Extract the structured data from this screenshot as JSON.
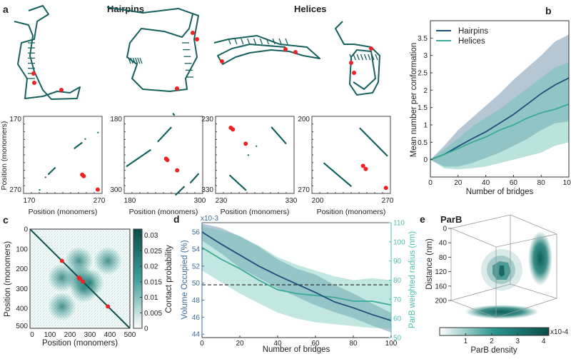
{
  "panels": {
    "a": "a",
    "b": "b",
    "c": "c",
    "d": "d",
    "e": "e"
  },
  "colors": {
    "hairpins": "#1f4f7d",
    "helices": "#3bab99",
    "teal_dark": "#0f5f5c",
    "red": "#ee2222",
    "hairpin_band": "#5c809f",
    "helix_band": "#67c2b2"
  },
  "chart_data": [
    {
      "id": "a-structures",
      "type": "diagram",
      "group_titles": [
        "Hairpins",
        "Helices"
      ]
    },
    {
      "id": "a-contact-maps",
      "type": "scatter",
      "xlabel": "Position (monomers)",
      "ylabel": "Position (monomers)",
      "maps": [
        {
          "range": [
            170,
            270
          ],
          "tick_labels": [
            "170",
            "270"
          ],
          "teal_segments": [
            [
              190.5,
              265.5,
              190.5,
              265.5
            ],
            [
              198,
              249,
              198,
              249
            ],
            [
              201.8,
              245,
              210.9,
              236
            ],
            [
              235,
              211.4,
              244.7,
              204
            ],
            [
              248.6,
              199.4,
              248.6,
              199.4
            ],
            [
              264.8,
              191,
              264.8,
              191
            ]
          ],
          "red_points": [
            [
              244.7,
              245.7
            ],
            [
              246.6,
              247.5
            ],
            [
              264.5,
              265
            ]
          ]
        },
        {
          "range": [
            180,
            300
          ],
          "tick_labels": [
            "180",
            "300"
          ],
          "teal_segments": [
            [
              184,
              257.6,
              220,
              232.5
            ],
            [
              231.8,
              219,
              252,
              197
            ],
            [
              255,
              176,
              256.5,
              178
            ],
            [
              259,
              302,
              271.4,
              289.8
            ],
            [
              281.6,
              283,
              294,
              269
            ]
          ],
          "red_points": [
            [
              244,
              246
            ],
            [
              246,
              248
            ],
            [
              261,
              264
            ]
          ]
        },
        {
          "range": [
            230,
            330
          ],
          "tick_labels": [
            "230",
            "330"
          ],
          "teal_segments": [
            [
              248.4,
              306.8,
              268.4,
              325.5
            ],
            [
              301.6,
              244.5,
              319.4,
              265
            ],
            [
              282,
              268.7,
              282,
              268.7
            ],
            [
              271.6,
              280.3,
              271.6,
              280.3
            ]
          ],
          "red_points": [
            [
              249.4,
              244.8
            ],
            [
              252,
              247
            ],
            [
              268.4,
              265.5
            ]
          ]
        },
        {
          "range": [
            200,
            270
          ],
          "tick_labels": [
            "200",
            "270"
          ],
          "teal_segments": [
            [
              211,
              242.7,
              234.8,
              263.3
            ],
            [
              243,
              211,
              267,
              235.7
            ]
          ],
          "red_points": [
            [
              245.6,
              245
            ],
            [
              248,
              247.8
            ],
            [
              266,
              265
            ]
          ]
        }
      ]
    },
    {
      "id": "b",
      "type": "line",
      "xlabel": "Number of bridges",
      "ylabel": "Mean number per conformation",
      "xlim": [
        0,
        100
      ],
      "ylim": [
        -0.5,
        4.0
      ],
      "xticks": [
        0,
        20,
        40,
        60,
        80,
        100
      ],
      "yticks": [
        0,
        0.5,
        1,
        1.5,
        2,
        2.5,
        3,
        3.5
      ],
      "ytick_labels": [
        "0",
        "0.5",
        "1",
        "1.5",
        "2",
        "2.5",
        "3",
        "3.5"
      ],
      "legend": "top-left",
      "x": [
        0,
        10,
        20,
        30,
        40,
        50,
        60,
        70,
        80,
        90,
        100
      ],
      "series": [
        {
          "name": "Hairpins",
          "values": [
            0,
            0.15,
            0.38,
            0.6,
            0.8,
            1.05,
            1.3,
            1.6,
            1.9,
            2.15,
            2.35
          ],
          "upper": [
            0,
            0.4,
            0.85,
            1.2,
            1.55,
            1.9,
            2.3,
            2.65,
            3.0,
            3.4,
            3.6
          ],
          "lower": [
            0,
            -0.2,
            -0.2,
            -0.1,
            0.05,
            0.2,
            0.4,
            0.6,
            0.85,
            1.05,
            1.1
          ]
        },
        {
          "name": "Helices",
          "values": [
            0,
            0.15,
            0.32,
            0.5,
            0.65,
            0.85,
            1.0,
            1.2,
            1.35,
            1.45,
            1.6
          ],
          "upper": [
            0,
            0.3,
            0.6,
            0.95,
            1.2,
            1.45,
            1.75,
            2.05,
            2.35,
            2.65,
            2.8
          ],
          "lower": [
            0,
            -0.25,
            -0.28,
            -0.25,
            -0.2,
            -0.1,
            0.0,
            0.1,
            0.2,
            0.4,
            0.5
          ]
        }
      ]
    },
    {
      "id": "c",
      "type": "heatmap",
      "xlabel": "Position (monomers)",
      "ylabel": "Position (monomers)",
      "xlim": [
        0,
        500
      ],
      "ylim": [
        0,
        500
      ],
      "ticks": [
        "0",
        "100",
        "200",
        "300",
        "400",
        "500"
      ],
      "colorbar": {
        "label": "Contact probability",
        "range": [
          0,
          0.032
        ],
        "ticks": [
          "0",
          "0.005",
          "0.01",
          "0.015",
          "0.02",
          "0.025",
          "0.03"
        ],
        "tick_values": [
          0,
          0.005,
          0.01,
          0.015,
          0.02,
          0.025,
          0.03
        ]
      },
      "red_points": [
        [
          160,
          160
        ],
        [
          245,
          245
        ],
        [
          250,
          250
        ],
        [
          265,
          265
        ],
        [
          390,
          390
        ]
      ],
      "hotspots": [
        [
          160,
          245
        ],
        [
          245,
          160
        ],
        [
          250,
          250
        ],
        [
          270,
          300
        ],
        [
          300,
          270
        ],
        [
          160,
          390
        ],
        [
          390,
          160
        ]
      ]
    },
    {
      "id": "d",
      "type": "line",
      "xlabel": "Number of bridges",
      "ylabel_left": "Volume Occupied (%)",
      "ylabel_right": "ParB weighted radius (nm)",
      "left_scale": "x10-3",
      "xlim": [
        0,
        100
      ],
      "ylim_left": [
        43.6,
        57.1
      ],
      "ylim_right": [
        50,
        110
      ],
      "xticks": [
        0,
        20,
        40,
        60,
        80,
        100
      ],
      "yticks_left": [
        44,
        46,
        48,
        50,
        52,
        54,
        56
      ],
      "yticks_right": [
        50,
        60,
        70,
        80,
        90,
        100,
        110
      ],
      "hline_left": 49.8,
      "x": [
        0,
        10,
        20,
        30,
        40,
        50,
        60,
        70,
        80,
        90,
        100
      ],
      "series": [
        {
          "axis": "left",
          "values": [
            56,
            54.6,
            53.3,
            52,
            50.9,
            49.9,
            48.9,
            47.8,
            47.1,
            46.3,
            45.6
          ],
          "upper": [
            57,
            56.5,
            55.5,
            54.3,
            52.8,
            51.7,
            51,
            49.8,
            48.8,
            47.6,
            46.5
          ],
          "lower": [
            55,
            53.5,
            51.8,
            50.6,
            49.4,
            48.4,
            47.4,
            46.6,
            45.9,
            45,
            44.2
          ]
        },
        {
          "axis": "right",
          "values": [
            97,
            91,
            86,
            80,
            75,
            73,
            72,
            71,
            69,
            69,
            67
          ],
          "upper": [
            108,
            106,
            103,
            98,
            92,
            88,
            85,
            82,
            80,
            81,
            80
          ],
          "lower": [
            85,
            79,
            73,
            68,
            63,
            60,
            58,
            57,
            56,
            55,
            55
          ]
        }
      ]
    },
    {
      "id": "e",
      "type": "3d-density",
      "title": "ParB",
      "zlabel": "Distance (nm)",
      "zticks": [
        "0",
        "40",
        "80",
        "120",
        "160",
        "200"
      ],
      "colorbar": {
        "label": "ParB density",
        "scale": "x10-4",
        "ticks": [
          "1",
          "2",
          "3",
          "4"
        ],
        "range": [
          0,
          4.2
        ]
      }
    }
  ]
}
